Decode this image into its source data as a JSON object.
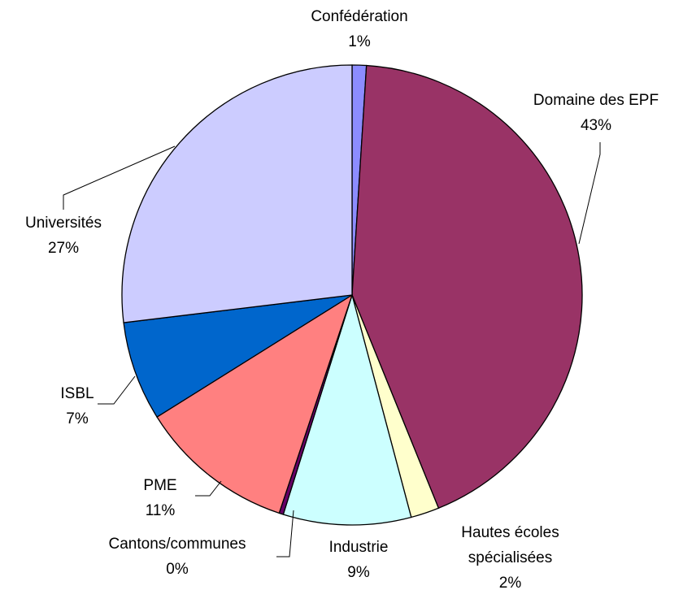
{
  "chart_data": {
    "type": "pie",
    "categories": [
      "Confédération",
      "Domaine des EPF",
      "Hautes écoles spécialisées",
      "Industrie",
      "Cantons/communes",
      "PME",
      "ISBL",
      "Universités"
    ],
    "values": [
      1,
      43,
      2,
      9,
      0.3,
      11,
      7,
      27
    ],
    "value_labels": [
      "1%",
      "43%",
      "2%",
      "9%",
      "0%",
      "11%",
      "7%",
      "27%"
    ],
    "colors": [
      "#8c8cff",
      "#993366",
      "#ffffcc",
      "#ccffff",
      "#660066",
      "#ff8080",
      "#0066cc",
      "#ccccff"
    ]
  }
}
